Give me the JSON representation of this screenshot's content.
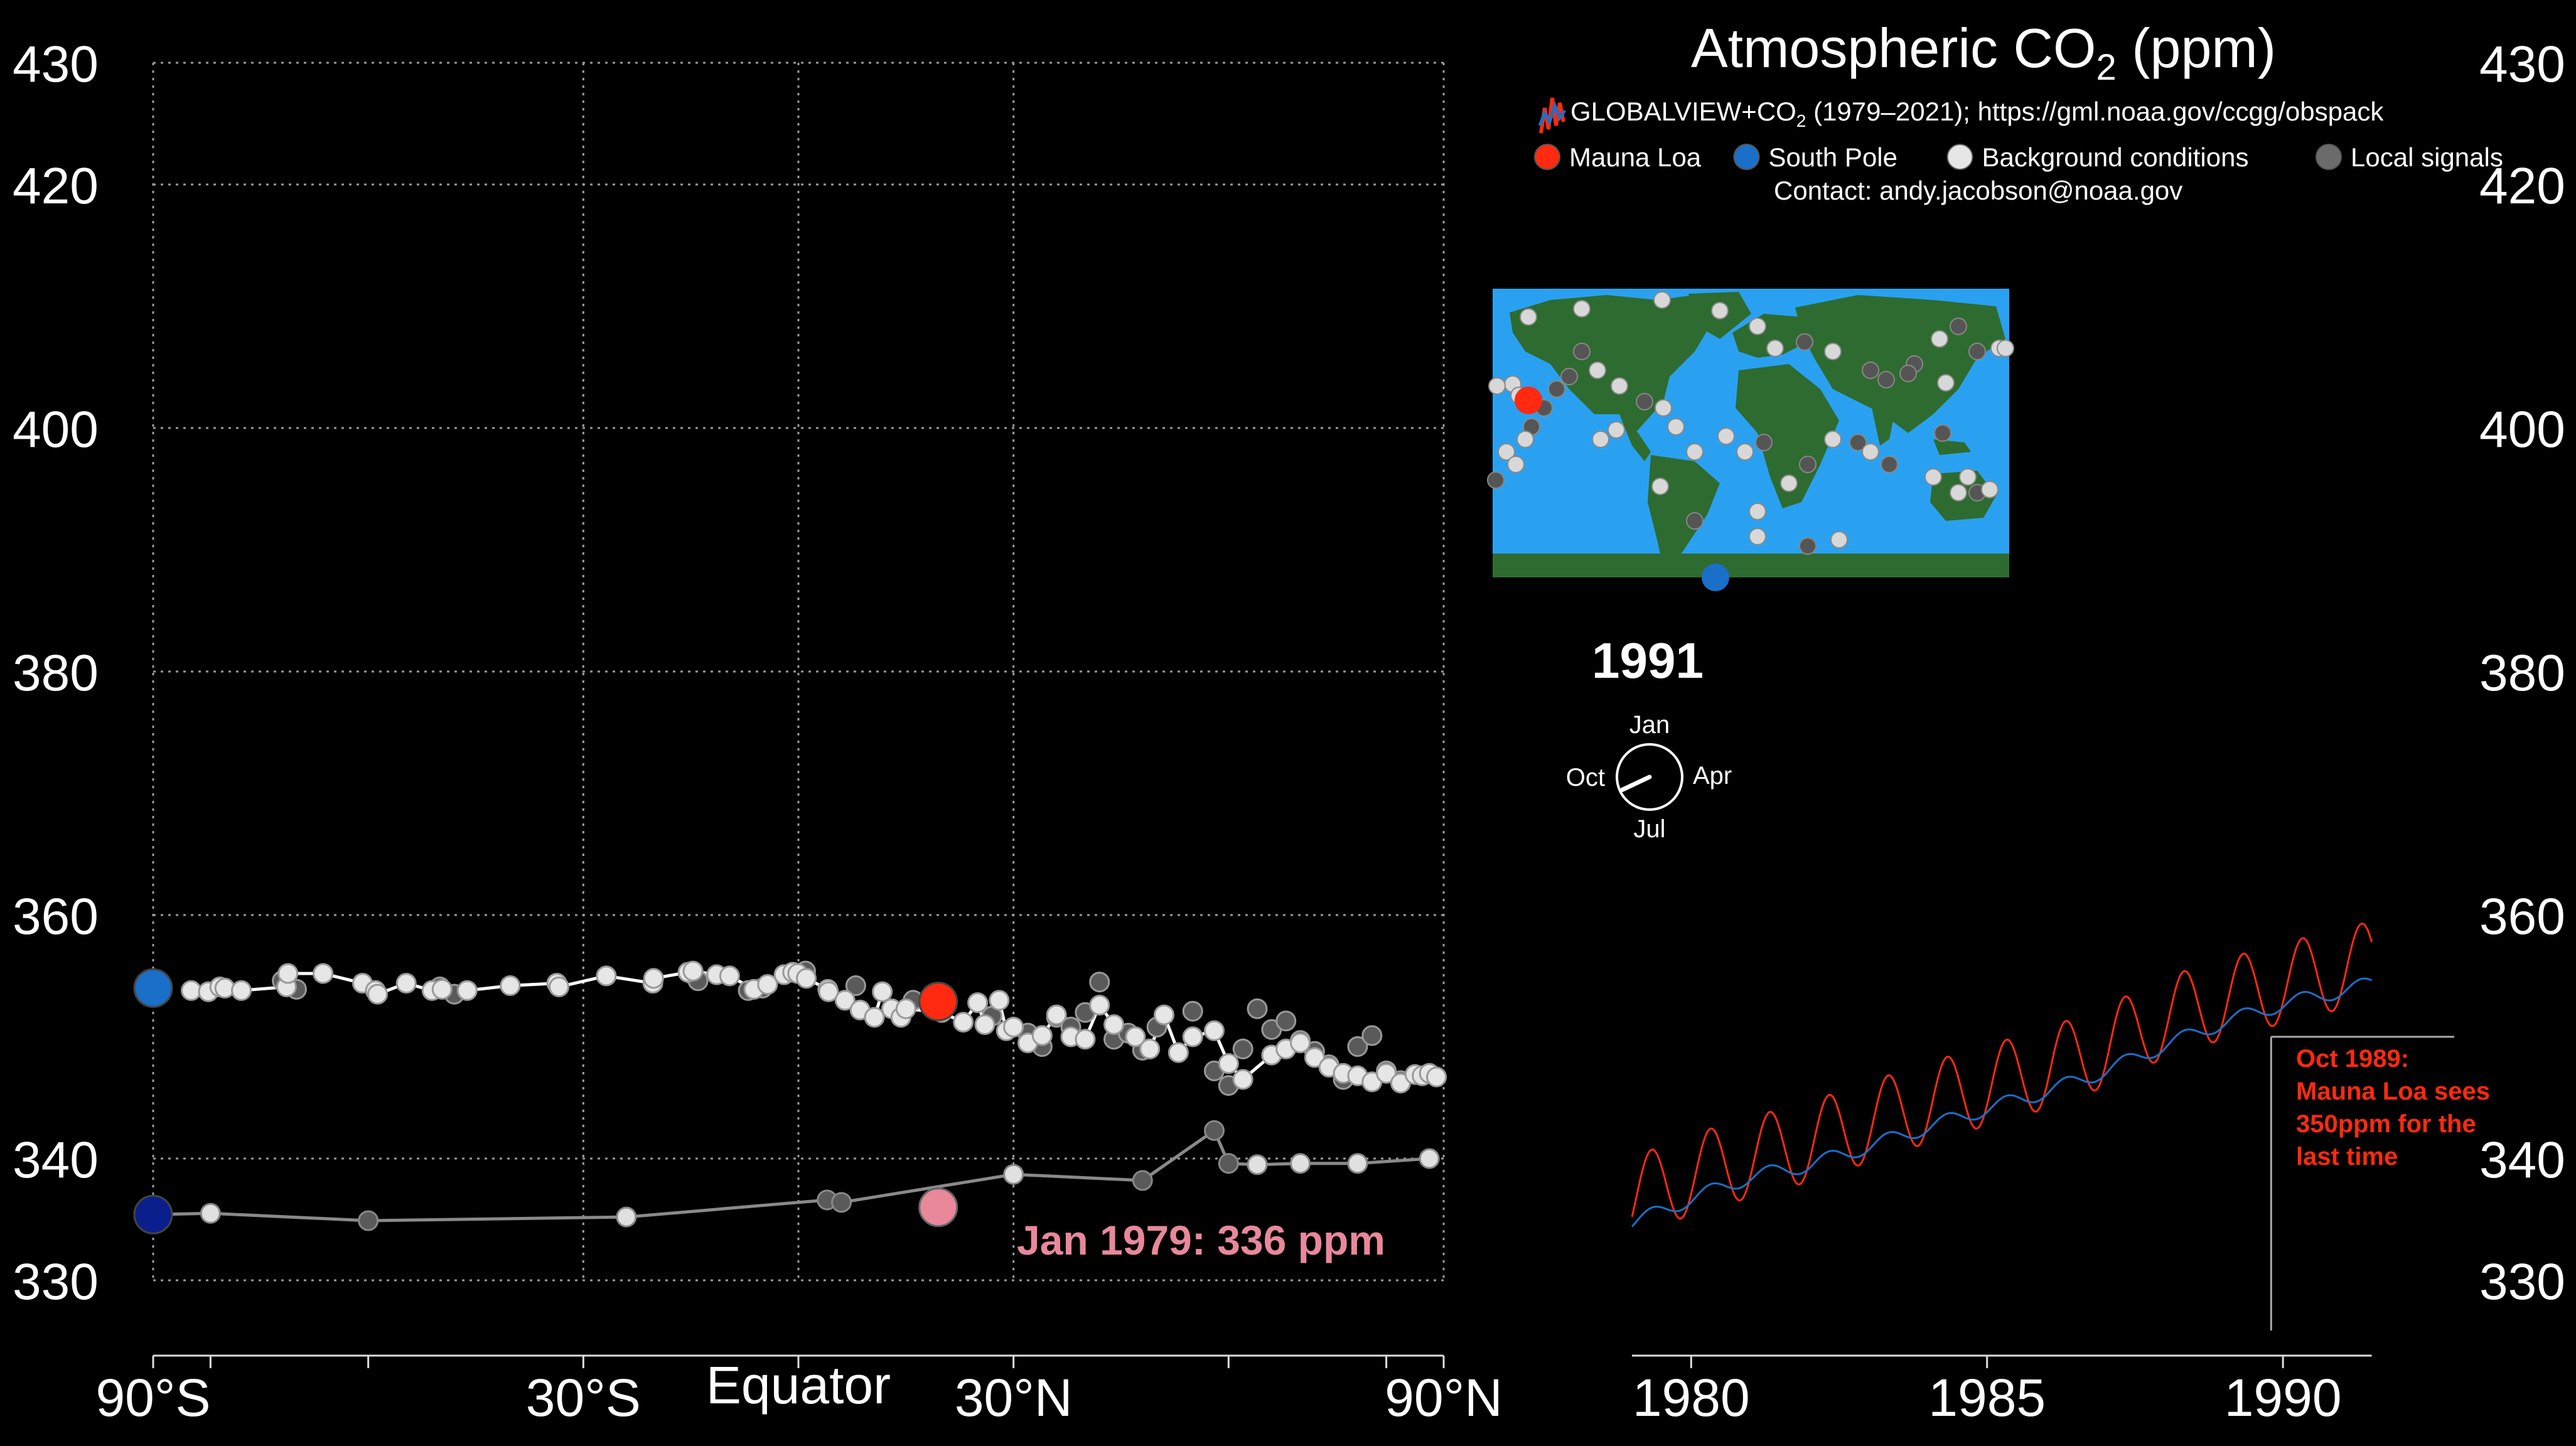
{
  "header": {
    "title_main": "Atmospheric CO",
    "title_sub": "2",
    "title_tail": " (ppm)",
    "source_pre": "GLOBALVIEW+CO",
    "source_sub": "2",
    "source_post": " (1979–2021); https://gml.noaa.gov/ccgg/obspack",
    "contact": "Contact: andy.jacobson@noaa.gov"
  },
  "legend": {
    "items": [
      {
        "label": "Mauna Loa",
        "color": "#ff2a10"
      },
      {
        "label": "South Pole",
        "color": "#1a6fc9"
      },
      {
        "label": "Background conditions",
        "color": "#e6e6e6"
      },
      {
        "label": "Local signals",
        "color": "#6b6b6b"
      }
    ]
  },
  "colors": {
    "background": "#000000",
    "mauna_loa": "#ff2a10",
    "south_pole": "#1a6fc9",
    "south_pole_1979": "#0a1f8c",
    "mauna_loa_1979": "#e8889a",
    "background_points": "#e6e6e6",
    "local_points": "#5a5a5a",
    "grid": "#9a9a9a",
    "ocean": "#2aa1f0",
    "land": "#2e6b30",
    "annotation": "#ff2a10"
  },
  "year_display": "1991",
  "clock": {
    "top": "Jan",
    "right": "Apr",
    "bottom": "Jul",
    "left": "Oct",
    "hand_month_fraction": 0.68
  },
  "map": {
    "icon_names": [
      "world-map-icon",
      "mauna-loa-marker",
      "south-pole-marker"
    ]
  },
  "annotation_1979": "Jan 1979: 336 ppm",
  "annotation_1989": [
    "Oct 1989:",
    "Mauna Loa sees",
    "350ppm for the",
    "last time"
  ],
  "chart_data": [
    {
      "type": "scatter",
      "title": "",
      "xlabel": "",
      "ylabel": "",
      "ylim": [
        330,
        430
      ],
      "y_ticks": [
        330,
        340,
        360,
        380,
        400,
        420,
        430
      ],
      "x_ticks": [
        {
          "lat": -90,
          "label": "90°S"
        },
        {
          "lat": -30,
          "label": "30°S"
        },
        {
          "lat": 0,
          "label": "Equator"
        },
        {
          "lat": 30,
          "label": "30°N"
        },
        {
          "lat": 90,
          "label": "90°N"
        }
      ],
      "x_minor_ticks": [
        -90,
        -82,
        -60,
        -30,
        0,
        30,
        60,
        82,
        90
      ],
      "xlim": [
        -90,
        90
      ],
      "grid": true,
      "series": [
        {
          "name": "Background conditions",
          "note": "latitudinal profile, current date",
          "x": [
            -84.7,
            -82.3,
            -80.7,
            -80,
            -77.7,
            -71.4,
            -71.2,
            -66.3,
            -60.8,
            -59,
            -58.7,
            -54.7,
            -51.1,
            -49.7,
            -46.2,
            -40.2,
            -33.7,
            -33.4,
            -26.8,
            -20.3,
            -20.2,
            -15.4,
            -14.7,
            -11.4,
            -9.6,
            -6.2,
            -4.3,
            -2,
            -0.8,
            -0.1,
            1.1,
            4.1,
            4.2,
            6.5,
            8.6,
            10.6,
            11.7,
            13,
            14.3,
            15,
            20,
            23,
            25,
            26,
            28,
            29,
            30,
            32,
            34,
            36,
            38,
            40,
            42,
            44,
            47,
            49,
            51,
            53,
            55,
            58,
            60,
            62,
            66,
            68,
            70,
            72,
            74,
            76,
            78,
            80,
            82,
            84,
            86,
            87,
            88,
            89
          ],
          "y": [
            353.8,
            353.7,
            354.1,
            354.0,
            353.8,
            354.1,
            355.2,
            355.2,
            354.4,
            353.8,
            353.5,
            354.4,
            353.8,
            353.9,
            353.8,
            354.2,
            354.4,
            354.1,
            355.0,
            354.4,
            354.8,
            355.3,
            355.4,
            355.1,
            355.0,
            353.9,
            354.3,
            355.1,
            355.3,
            355.2,
            354.8,
            353.9,
            353.7,
            353.0,
            352.2,
            351.6,
            353.7,
            352.3,
            351.6,
            352.3,
            352.0,
            351.2,
            352.8,
            351.0,
            353.0,
            350.5,
            350.8,
            349.5,
            350.1,
            351.8,
            350.0,
            349.8,
            352.6,
            351.0,
            350.0,
            349.0,
            351.8,
            348.7,
            350.0,
            350.5,
            347.8,
            346.5,
            348.5,
            349.0,
            349.5,
            348.3,
            347.5,
            347.0,
            346.8,
            346.3,
            347.0,
            346.2,
            346.9,
            346.8,
            347.0,
            346.7
          ],
          "values_hint": "shown as white points"
        },
        {
          "name": "Local signals",
          "x": [
            -72,
            -70,
            -50,
            -48,
            -15,
            -14,
            -7,
            -5,
            1,
            8,
            16,
            20,
            27,
            32,
            34,
            36,
            38,
            40,
            42,
            44,
            46,
            48,
            50,
            55,
            58,
            60,
            62,
            64,
            66,
            68,
            70,
            72,
            74,
            76,
            78,
            80,
            82,
            84
          ],
          "y": [
            354.6,
            353.9,
            354.1,
            353.5,
            355.2,
            354.6,
            353.8,
            354.0,
            355.4,
            354.2,
            353.0,
            352.4,
            351.7,
            350.3,
            349.2,
            351.6,
            350.8,
            352.0,
            354.5,
            349.8,
            350.3,
            348.9,
            350.8,
            352.1,
            347.2,
            346.0,
            349.0,
            352.3,
            350.6,
            351.3,
            349.7,
            348.8,
            347.7,
            346.5,
            349.2,
            350.1,
            347.2,
            346.4
          ]
        },
        {
          "name": "Mauna Loa",
          "x": [
            19.5
          ],
          "y": [
            352.9
          ]
        },
        {
          "name": "South Pole",
          "x": [
            -90
          ],
          "y": [
            354.0
          ]
        }
      ],
      "series_1979": {
        "name": "Jan 1979",
        "x": [
          -90,
          -82,
          -60,
          -24,
          4,
          6,
          30,
          48,
          58,
          60,
          64,
          70,
          78,
          88
        ],
        "y": [
          335.4,
          335.5,
          334.9,
          335.2,
          336.6,
          336.4,
          338.7,
          338.2,
          342.3,
          339.6,
          339.5,
          339.6,
          339.6,
          340.0
        ],
        "kinds": [
          "sp",
          "bg",
          "local",
          "bg",
          "local",
          "local",
          "bg",
          "local",
          "local",
          "local",
          "bg",
          "bg",
          "bg",
          "bg"
        ]
      },
      "mauna_loa_1979": {
        "x": 19.5,
        "y": 336.0
      }
    },
    {
      "type": "line",
      "title": "",
      "xlabel": "",
      "ylabel": "",
      "xlim": [
        1979.0,
        1993.0
      ],
      "ylim": [
        330,
        430
      ],
      "x_ticks": [
        1980,
        1985,
        1990
      ],
      "y_ticks": [
        330,
        340,
        360,
        380,
        400,
        420,
        430
      ],
      "series": [
        {
          "name": "Mauna Loa",
          "color": "#ff2a10",
          "annual_mean": [
            [
              1979,
              336.8
            ],
            [
              1980,
              338.7
            ],
            [
              1981,
              340.1
            ],
            [
              1982,
              341.4
            ],
            [
              1983,
              343.0
            ],
            [
              1984,
              344.6
            ],
            [
              1985,
              346.0
            ],
            [
              1986,
              347.4
            ],
            [
              1987,
              349.2
            ],
            [
              1988,
              351.6
            ],
            [
              1989,
              353.1
            ],
            [
              1990,
              354.4
            ],
            [
              1991,
              355.6
            ]
          ],
          "seasonal_amplitude_ppm": 3.3,
          "end_x": 1991.5
        },
        {
          "name": "South Pole",
          "color": "#1a6fc9",
          "annual_mean": [
            [
              1979,
              334.7
            ],
            [
              1980,
              336.7
            ],
            [
              1981,
              338.5
            ],
            [
              1982,
              339.5
            ],
            [
              1983,
              341.0
            ],
            [
              1984,
              342.6
            ],
            [
              1985,
              344.1
            ],
            [
              1986,
              345.5
            ],
            [
              1987,
              347.2
            ],
            [
              1988,
              349.3
            ],
            [
              1989,
              351.2
            ],
            [
              1990,
              352.7
            ],
            [
              1991,
              353.8
            ]
          ],
          "seasonal_amplitude_ppm": 0.6,
          "end_x": 1991.5
        }
      ],
      "annotation": {
        "x": 1989.8,
        "y": 350.0,
        "text": "Oct 1989: Mauna Loa sees 350ppm for the last time"
      }
    }
  ]
}
